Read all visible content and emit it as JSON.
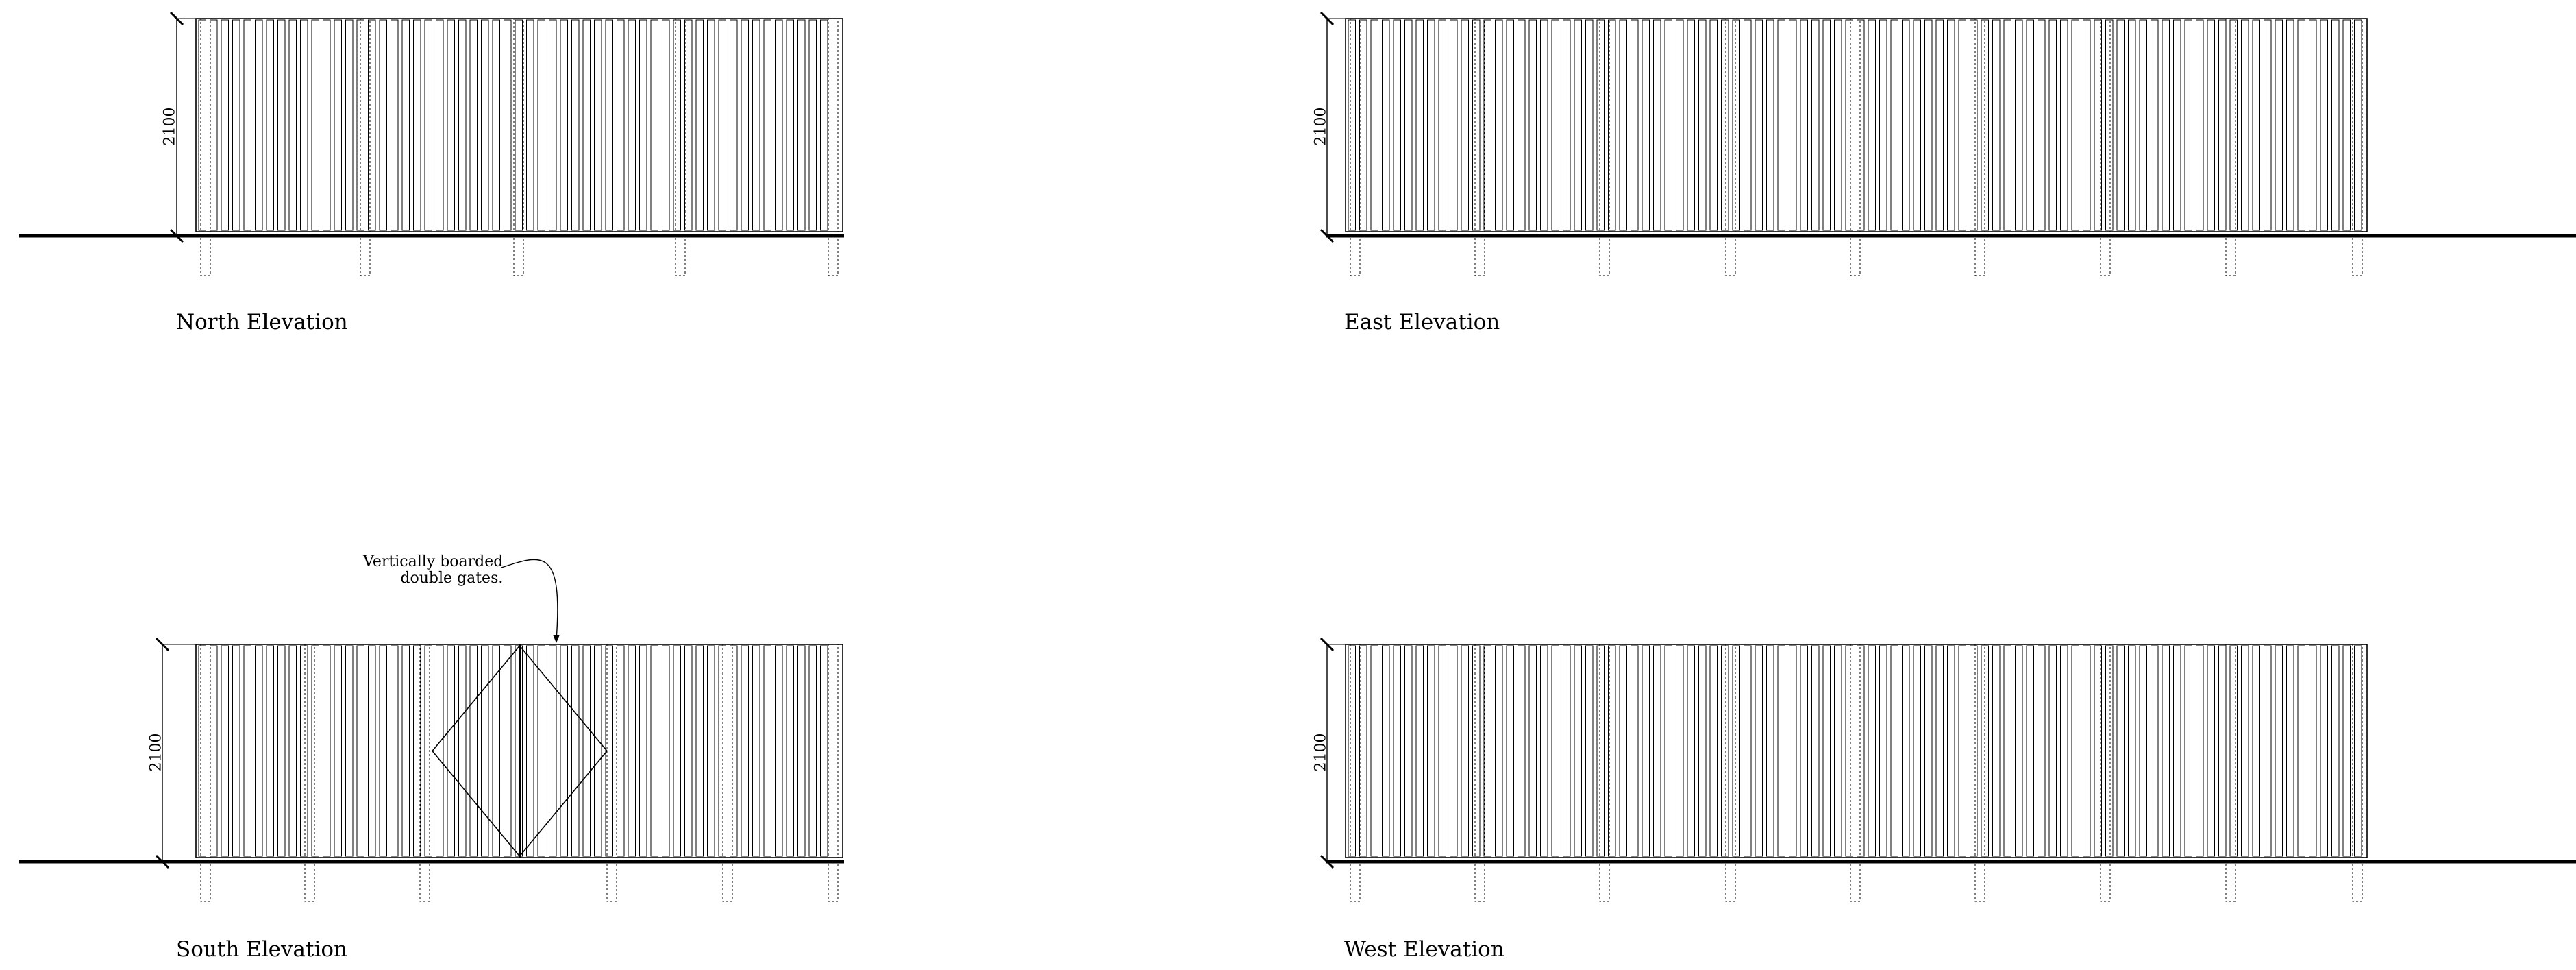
{
  "elevations": [
    {
      "id": "north",
      "title": "North Elevation",
      "height_label": "2100"
    },
    {
      "id": "east",
      "title": "East Elevation",
      "height_label": "2100"
    },
    {
      "id": "south",
      "title": "South Elevation",
      "height_label": "2100",
      "annotation": "Vertically boarded\ndouble gates."
    },
    {
      "id": "west",
      "title": "West Elevation",
      "height_label": "2100"
    }
  ],
  "colors": {
    "line": "#000000",
    "background": "#ffffff"
  }
}
